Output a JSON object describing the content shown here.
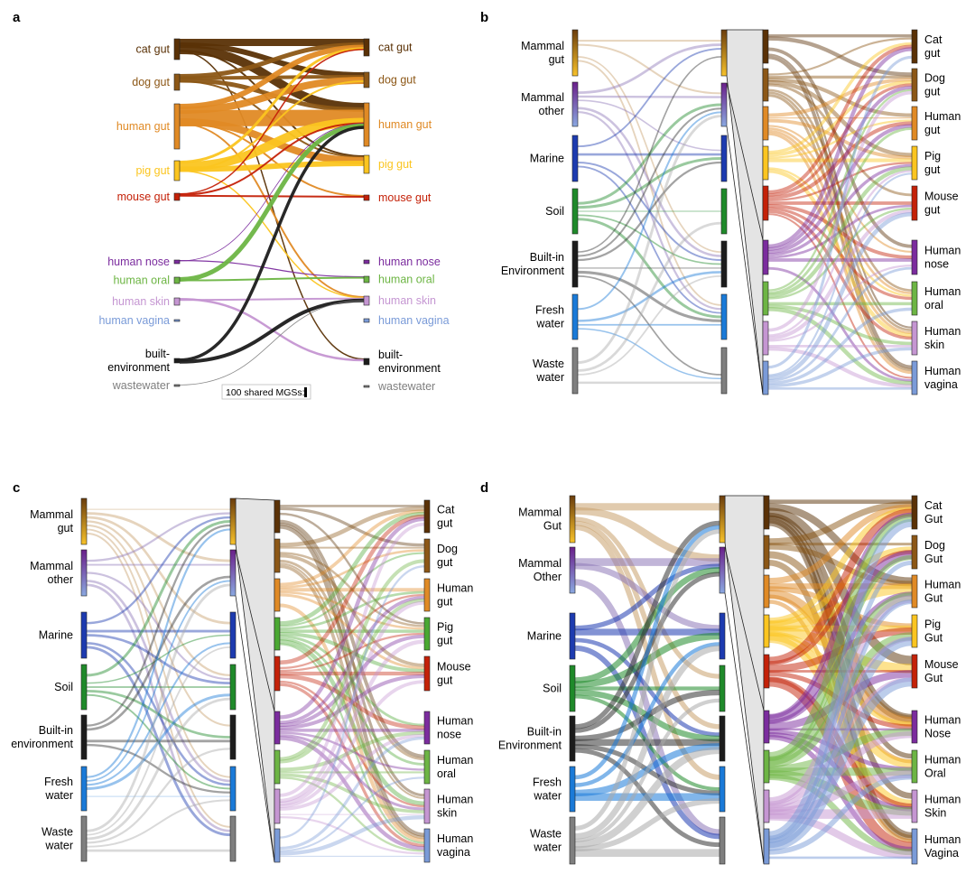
{
  "colors": {
    "cat": "#5a3106",
    "dog": "#8c5716",
    "human_gut": "#e08a25",
    "pig": "#fbc520",
    "mouse": "#c42108",
    "nose": "#7b2c9e",
    "oral": "#6db544",
    "skin": "#c596d2",
    "vagina": "#7a9bd8",
    "built": "#1c1c1c",
    "waste": "#7f7f7f",
    "mammal_other_top": "#6a1f8a",
    "mammal_other_bot": "#8aa8e0",
    "marine": "#1d3bb0",
    "soil": "#1f8a2a",
    "fresh": "#1a7ad8",
    "pig_d": "#4aa832"
  },
  "panels": [
    {
      "id": "a",
      "letter": "a",
      "left_labels": [
        "cat gut",
        "dog gut",
        "human gut",
        "pig gut",
        "mouse gut",
        "human nose",
        "human oral",
        "human skin",
        "human vagina",
        "built-\nenvironment",
        "wastewater"
      ],
      "right_labels": [
        "cat gut",
        "dog gut",
        "human gut",
        "pig gut",
        "mouse gut",
        "human nose",
        "human oral",
        "human skin",
        "human vagina",
        "built-\nenvironment",
        "wastewater"
      ],
      "scale_label": "100 shared MGSs:"
    },
    {
      "id": "b",
      "letter": "b",
      "left_labels": [
        "Mammal\ngut",
        "Mammal\nother",
        "Marine",
        "Soil",
        "Built-in\nEnvironment",
        "Fresh\nwater",
        "Waste\nwater"
      ],
      "right_labels": [
        "Cat\ngut",
        "Dog\ngut",
        "Human\ngut",
        "Pig\ngut",
        "Mouse\ngut",
        "Human\nnose",
        "Human\noral",
        "Human\nskin",
        "Human\nvagina"
      ]
    },
    {
      "id": "c",
      "letter": "c",
      "left_labels": [
        "Mammal\ngut",
        "Mammal\nother",
        "Marine",
        "Soil",
        "Built-in\nenvironment",
        "Fresh\nwater",
        "Waste\nwater"
      ],
      "right_labels": [
        "Cat\ngut",
        "Dog\ngut",
        "Human\ngut",
        "Pig\ngut",
        "Mouse\ngut",
        "Human\nnose",
        "Human\noral",
        "Human\nskin",
        "Human\nvagina"
      ]
    },
    {
      "id": "d",
      "letter": "d",
      "left_labels": [
        "Mammal\nGut",
        "Mammal\nOther",
        "Marine",
        "Soil",
        "Built-in\nEnvironment",
        "Fresh\nwater",
        "Waste\nwater"
      ],
      "right_labels": [
        "Cat\nGut",
        "Dog\nGut",
        "Human\nGut",
        "Pig\nGut",
        "Mouse\nGut",
        "Human\nNose",
        "Human\nOral",
        "Human\nSkin",
        "Human\nVagina"
      ]
    }
  ]
}
